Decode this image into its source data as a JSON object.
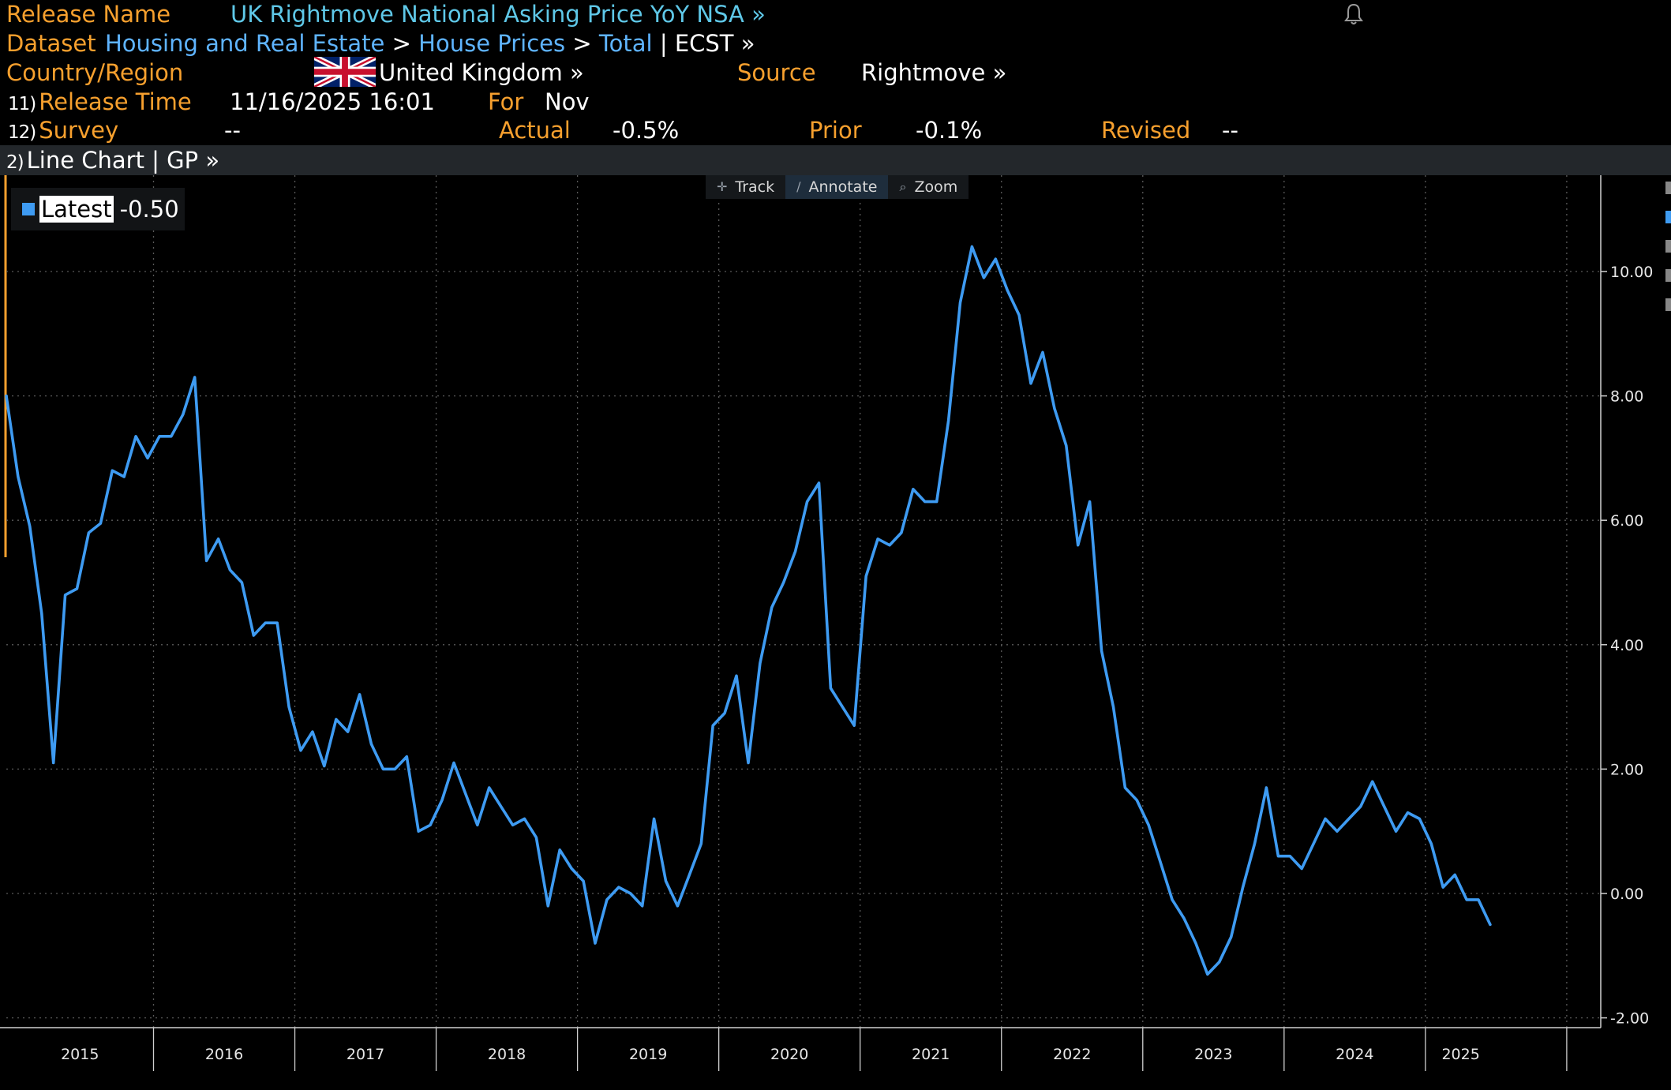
{
  "header": {
    "release_name_label": "Release Name",
    "release_name": "UK Rightmove National Asking Price YoY NSA »",
    "dataset_label": "Dataset",
    "dataset_path_1": "Housing and Real Estate",
    "dataset_path_2": "House Prices",
    "dataset_path_3": "Total",
    "dataset_ticker": "ECST »",
    "crumb_sep": ">",
    "pipe": "|",
    "country_label": "Country/Region",
    "country": "United Kingdom »",
    "source_label": "Source",
    "source": "Rightmove »",
    "release_time_num": "11)",
    "release_time_label": "Release Time",
    "release_time": "11/16/2025 16:01",
    "for_label": "For",
    "for_value": "Nov",
    "survey_num": "12)",
    "survey_label": "Survey",
    "survey_value": "--",
    "actual_label": "Actual",
    "actual_value": "-0.5%",
    "prior_label": "Prior",
    "prior_value": "-0.1%",
    "revised_label": "Revised",
    "revised_value": "--"
  },
  "chart_bar": {
    "num": "2)",
    "text": "Line Chart | GP »"
  },
  "toolbar": {
    "track": "Track",
    "annotate": "Annotate",
    "zoom": "Zoom"
  },
  "legend": {
    "name": "Latest",
    "value": "-0.50"
  },
  "colors": {
    "background": "#000000",
    "line": "#3e9bf2",
    "label_orange": "#f7a02e",
    "title_cyan": "#5fc8e8",
    "link_blue": "#5fb4ff",
    "grid": "#5a5a5a"
  },
  "icons": {
    "bell": "bell-icon",
    "track": "crosshair-icon",
    "annotate": "pencil-icon",
    "zoom": "magnifier-icon",
    "flag": "uk-flag-icon"
  },
  "chart_data": {
    "type": "line",
    "title": "",
    "xlabel": "",
    "ylabel": "",
    "ylim": [
      -2.2,
      11.5
    ],
    "yticks": [
      -2,
      0,
      2,
      4,
      6,
      8,
      10
    ],
    "ytick_labels": [
      "-2.00",
      "0.00",
      "2.00",
      "4.00",
      "6.00",
      "8.00",
      "10.00"
    ],
    "x_labels": [
      "2015",
      "2016",
      "2017",
      "2018",
      "2019",
      "2020",
      "2021",
      "2022",
      "2023",
      "2024",
      "2025"
    ],
    "grid": true,
    "legend_position": "top-left",
    "series": [
      {
        "name": "Latest",
        "start": "2014-12",
        "frequency": "monthly",
        "values": [
          8.0,
          6.7,
          5.9,
          4.5,
          2.1,
          4.8,
          4.9,
          5.8,
          5.95,
          6.8,
          6.7,
          7.35,
          7.0,
          7.35,
          7.35,
          7.7,
          8.3,
          5.35,
          5.7,
          5.2,
          5.0,
          4.15,
          4.35,
          4.35,
          3.0,
          2.3,
          2.6,
          2.05,
          2.8,
          2.6,
          3.2,
          2.4,
          2.0,
          2.0,
          2.2,
          1.0,
          1.1,
          1.5,
          2.1,
          1.6,
          1.1,
          1.7,
          1.4,
          1.1,
          1.2,
          0.9,
          -0.2,
          0.7,
          0.4,
          0.2,
          -0.8,
          -0.1,
          0.1,
          0.0,
          -0.2,
          1.2,
          0.2,
          -0.2,
          0.3,
          0.8,
          2.7,
          2.9,
          3.5,
          2.1,
          3.7,
          4.6,
          5.0,
          5.5,
          6.3,
          6.6,
          3.3,
          3.0,
          2.7,
          5.1,
          5.7,
          5.6,
          5.8,
          6.5,
          6.3,
          6.3,
          7.6,
          9.5,
          10.4,
          9.9,
          10.2,
          9.7,
          9.3,
          8.2,
          8.7,
          7.8,
          7.2,
          5.6,
          6.3,
          3.9,
          3.0,
          1.7,
          1.5,
          1.1,
          0.5,
          -0.1,
          -0.4,
          -0.8,
          -1.3,
          -1.1,
          -0.7,
          0.1,
          0.8,
          1.7,
          0.6,
          0.6,
          0.4,
          0.8,
          1.2,
          1.0,
          1.2,
          1.4,
          1.8,
          1.4,
          1.0,
          1.3,
          1.2,
          0.8,
          0.1,
          0.3,
          -0.1,
          -0.1,
          -0.5
        ]
      }
    ]
  }
}
